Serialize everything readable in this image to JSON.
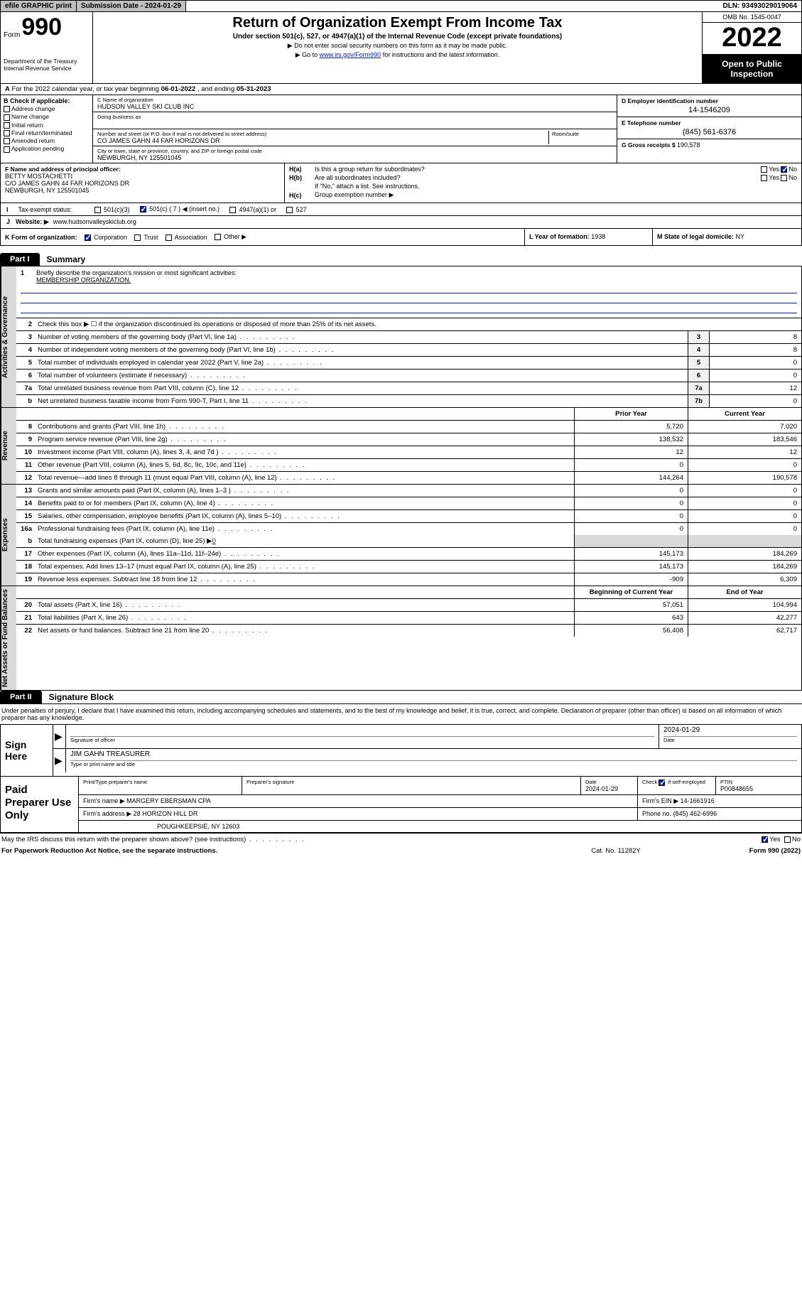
{
  "topbar": {
    "efile": "efile GRAPHIC print",
    "submission_label": "Submission Date - 2024-01-29",
    "dln": "DLN: 93493029019064"
  },
  "header": {
    "form_word": "Form",
    "form_num": "990",
    "dept": "Department of the Treasury\nInternal Revenue Service",
    "title": "Return of Organization Exempt From Income Tax",
    "sub1": "Under section 501(c), 527, or 4947(a)(1) of the Internal Revenue Code (except private foundations)",
    "sub2": "Do not enter social security numbers on this form as it may be made public.",
    "sub3_pre": "Go to ",
    "sub3_link": "www.irs.gov/Form990",
    "sub3_post": " for instructions and the latest information.",
    "omb": "OMB No. 1545-0047",
    "year": "2022",
    "inspection": "Open to Public Inspection"
  },
  "row_a": {
    "text_pre": "For the 2022 calendar year, or tax year beginning ",
    "begin": "06-01-2022",
    "mid": " , and ending ",
    "end": "05-31-2023"
  },
  "col_b": {
    "header": "B Check if applicable:",
    "opts": [
      "Address change",
      "Name change",
      "Initial return",
      "Final return/terminated",
      "Amended return",
      "Application pending"
    ]
  },
  "col_c": {
    "name_lbl": "C Name of organization",
    "name_val": "HUDSON VALLEY SKI CLUB INC",
    "dba_lbl": "Doing business as",
    "street_lbl": "Number and street (or P.O. box if mail is not delivered to street address)",
    "street_val": "CO JAMES GAHN 44 FAR HORIZONS DR",
    "room_lbl": "Room/suite",
    "city_lbl": "City or town, state or province, country, and ZIP or foreign postal code",
    "city_val": "NEWBURGH, NY  125501045"
  },
  "col_de": {
    "d_lbl": "D Employer identification number",
    "d_val": "14-1546209",
    "e_lbl": "E Telephone number",
    "e_val": "(845) 561-6376",
    "g_lbl": "G Gross receipts $ ",
    "g_val": "190,578"
  },
  "f": {
    "lbl": "F Name and address of principal officer:",
    "name": "BETTY MOSTACHETTI",
    "addr1": "C/O JAMES GAHN 44 FAR HORIZONS DR",
    "addr2": "NEWBURGH, NY  125501045"
  },
  "h": {
    "a_lbl": "Is this a group return for subordinates?",
    "b_lbl": "Are all subordinates included?",
    "b_note": "If \"No,\" attach a list. See instructions.",
    "c_lbl": "Group exemption number ▶"
  },
  "tax": {
    "lbl": "Tax-exempt status:",
    "o1": "501(c)(3)",
    "o2": "501(c) ( 7 ) ◀ (insert no.)",
    "o3": "4947(a)(1) or",
    "o4": "527"
  },
  "web": {
    "lbl": "Website: ▶",
    "val": "www.hudsonvalleyskiclub.org"
  },
  "k": {
    "lbl": "K Form of organization:",
    "opts": [
      "Corporation",
      "Trust",
      "Association",
      "Other ▶"
    ]
  },
  "l": {
    "lbl": "L Year of formation: ",
    "val": "1938"
  },
  "m": {
    "lbl": "M State of legal domicile: ",
    "val": "NY"
  },
  "part1": {
    "tab": "Part I",
    "title": "Summary"
  },
  "mission": {
    "q": "Briefly describe the organization's mission or most significant activities:",
    "text": "MEMBERSHIP ORGANIZATION."
  },
  "line2": "Check this box ▶ ☐  if the organization discontinued its operations or disposed of more than 25% of its net assets.",
  "gov_lines": [
    {
      "n": "3",
      "d": "Number of voting members of the governing body (Part VI, line 1a)",
      "box": "3",
      "v": "8"
    },
    {
      "n": "4",
      "d": "Number of independent voting members of the governing body (Part VI, line 1b)",
      "box": "4",
      "v": "8"
    },
    {
      "n": "5",
      "d": "Total number of individuals employed in calendar year 2022 (Part V, line 2a)",
      "box": "5",
      "v": "0"
    },
    {
      "n": "6",
      "d": "Total number of volunteers (estimate if necessary)",
      "box": "6",
      "v": "0"
    },
    {
      "n": "7a",
      "d": "Total unrelated business revenue from Part VIII, column (C), line 12",
      "box": "7a",
      "v": "12"
    },
    {
      "n": "b",
      "d": "Net unrelated business taxable income from Form 990-T, Part I, line 11",
      "box": "7b",
      "v": "0"
    }
  ],
  "colheaders": {
    "prior": "Prior Year",
    "curr": "Current Year"
  },
  "rev_lines": [
    {
      "n": "8",
      "d": "Contributions and grants (Part VIII, line 1h)",
      "p": "5,720",
      "c": "7,020"
    },
    {
      "n": "9",
      "d": "Program service revenue (Part VIII, line 2g)",
      "p": "138,532",
      "c": "183,546"
    },
    {
      "n": "10",
      "d": "Investment income (Part VIII, column (A), lines 3, 4, and 7d )",
      "p": "12",
      "c": "12"
    },
    {
      "n": "11",
      "d": "Other revenue (Part VIII, column (A), lines 5, 6d, 8c, 9c, 10c, and 11e)",
      "p": "0",
      "c": "0"
    },
    {
      "n": "12",
      "d": "Total revenue—add lines 8 through 11 (must equal Part VIII, column (A), line 12)",
      "p": "144,264",
      "c": "190,578"
    }
  ],
  "exp_lines": [
    {
      "n": "13",
      "d": "Grants and similar amounts paid (Part IX, column (A), lines 1–3 )",
      "p": "0",
      "c": "0"
    },
    {
      "n": "14",
      "d": "Benefits paid to or for members (Part IX, column (A), line 4)",
      "p": "0",
      "c": "0"
    },
    {
      "n": "15",
      "d": "Salaries, other compensation, employee benefits (Part IX, column (A), lines 5–10)",
      "p": "0",
      "c": "0"
    },
    {
      "n": "16a",
      "d": "Professional fundraising fees (Part IX, column (A), line 11e)",
      "p": "0",
      "c": "0"
    }
  ],
  "line16b": {
    "n": "b",
    "d": "Total fundraising expenses (Part IX, column (D), line 25) ▶",
    "v": "0"
  },
  "exp_lines2": [
    {
      "n": "17",
      "d": "Other expenses (Part IX, column (A), lines 11a–11d, 11f–24e)",
      "p": "145,173",
      "c": "184,269"
    },
    {
      "n": "18",
      "d": "Total expenses. Add lines 13–17 (must equal Part IX, column (A), line 25)",
      "p": "145,173",
      "c": "184,269"
    },
    {
      "n": "19",
      "d": "Revenue less expenses. Subtract line 18 from line 12",
      "p": "-909",
      "c": "6,309"
    }
  ],
  "colheaders2": {
    "prior": "Beginning of Current Year",
    "curr": "End of Year"
  },
  "na_lines": [
    {
      "n": "20",
      "d": "Total assets (Part X, line 16)",
      "p": "57,051",
      "c": "104,994"
    },
    {
      "n": "21",
      "d": "Total liabilities (Part X, line 26)",
      "p": "643",
      "c": "42,277"
    },
    {
      "n": "22",
      "d": "Net assets or fund balances. Subtract line 21 from line 20",
      "p": "56,408",
      "c": "62,717"
    }
  ],
  "part2": {
    "tab": "Part II",
    "title": "Signature Block"
  },
  "sig_intro": "Under penalties of perjury, I declare that I have examined this return, including accompanying schedules and statements, and to the best of my knowledge and belief, it is true, correct, and complete. Declaration of preparer (other than officer) is based on all information of which preparer has any knowledge.",
  "sign_here": "Sign Here",
  "sig": {
    "sig_of_officer": "Signature of officer",
    "date_lbl": "Date",
    "date_val": "2024-01-29",
    "name": "JIM GAHN TREASURER",
    "name_lbl": "Type or print name and title"
  },
  "prep": {
    "title": "Paid Preparer Use Only",
    "h_name": "Print/Type preparer's name",
    "h_sig": "Preparer's signature",
    "h_date": "Date",
    "h_date_v": "2024-01-29",
    "h_check": "Check ☑ if self-employed",
    "h_ptin": "PTIN",
    "h_ptin_v": "P00848655",
    "firm_name_lbl": "Firm's name      ▶",
    "firm_name": "MARGERY EBERSMAN CPA",
    "firm_ein_lbl": "Firm's EIN ▶",
    "firm_ein": "14-1661916",
    "firm_addr_lbl": "Firm's address ▶",
    "firm_addr1": "28 HORIZON HILL DR",
    "firm_addr2": "POUGHKEEPSIE, NY  12603",
    "phone_lbl": "Phone no.",
    "phone": "(845) 462-6996"
  },
  "discuss": "May the IRS discuss this return with the preparer shown above? (see instructions)",
  "bottom": {
    "left": "For Paperwork Reduction Act Notice, see the separate instructions.",
    "mid": "Cat. No. 11282Y",
    "right": "Form 990 (2022)"
  },
  "vtabs": {
    "gov": "Activities & Governance",
    "rev": "Revenue",
    "exp": "Expenses",
    "na": "Net Assets or Fund Balances"
  },
  "yes": "Yes",
  "no": "No"
}
